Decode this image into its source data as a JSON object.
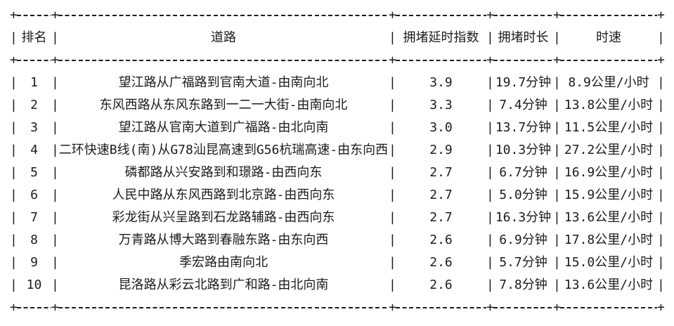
{
  "table": {
    "glyphs": {
      "pipe": "|",
      "plus": "+"
    },
    "columns": [
      "排名",
      "道路",
      "拥堵延时指数",
      "拥堵时长",
      "时速"
    ],
    "rows": [
      {
        "rank": "1",
        "road": "望江路从广福路到官南大道-由南向北",
        "index": "3.9",
        "duration": "19.7分钟",
        "speed": "8.9公里/小时"
      },
      {
        "rank": "2",
        "road": "东风西路从东风东路到一二一大街-由南向北",
        "index": "3.3",
        "duration": "7.4分钟",
        "speed": "13.8公里/小时"
      },
      {
        "rank": "3",
        "road": "望江路从官南大道到广福路-由北向南",
        "index": "3.0",
        "duration": "13.7分钟",
        "speed": "11.5公里/小时"
      },
      {
        "rank": "4",
        "road": "二环快速B线(南)从G78汕昆高速到G56杭瑞高速-由东向西",
        "index": "2.9",
        "duration": "10.3分钟",
        "speed": "27.2公里/小时"
      },
      {
        "rank": "5",
        "road": "磷都路从兴安路到和璟路-由西向东",
        "index": "2.7",
        "duration": "6.7分钟",
        "speed": "16.9公里/小时"
      },
      {
        "rank": "6",
        "road": "人民中路从东风西路到北京路-由西向东",
        "index": "2.7",
        "duration": "5.0分钟",
        "speed": "15.9公里/小时"
      },
      {
        "rank": "7",
        "road": "彩龙街从兴呈路到石龙路辅路-由西向东",
        "index": "2.7",
        "duration": "16.3分钟",
        "speed": "13.6公里/小时"
      },
      {
        "rank": "8",
        "road": "万青路从博大路到春融东路-由东向西",
        "index": "2.6",
        "duration": "6.9分钟",
        "speed": "17.8公里/小时"
      },
      {
        "rank": "9",
        "road": "季宏路由南向北",
        "index": "2.6",
        "duration": "5.7分钟",
        "speed": "15.0公里/小时"
      },
      {
        "rank": "10",
        "road": "昆洛路从彩云北路到广和路-由北向南",
        "index": "2.6",
        "duration": "7.8分钟",
        "speed": "13.6公里/小时"
      }
    ]
  }
}
